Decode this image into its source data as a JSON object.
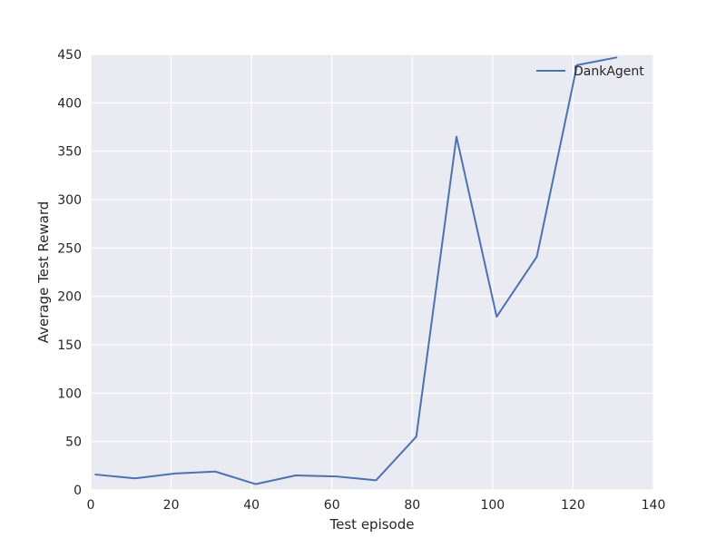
{
  "chart_data": {
    "type": "line",
    "title": "",
    "xlabel": "Test episode",
    "ylabel": "Average Test Reward",
    "xlim": [
      0,
      140
    ],
    "ylim": [
      0,
      450
    ],
    "xticks": [
      0,
      20,
      40,
      60,
      80,
      100,
      120,
      140
    ],
    "yticks": [
      0,
      50,
      100,
      150,
      200,
      250,
      300,
      350,
      400,
      450
    ],
    "grid": true,
    "legend_position": "top-right",
    "background_color": "#eaeaf2",
    "grid_color": "#ffffff",
    "series": [
      {
        "name": "DankAgent",
        "color": "#4c72b0",
        "x": [
          1,
          11,
          21,
          31,
          41,
          51,
          61,
          71,
          81,
          91,
          101,
          111,
          121,
          131
        ],
        "y": [
          16,
          12,
          17,
          19,
          6,
          15,
          14,
          10,
          55,
          365,
          179,
          241,
          439,
          447
        ]
      }
    ]
  }
}
